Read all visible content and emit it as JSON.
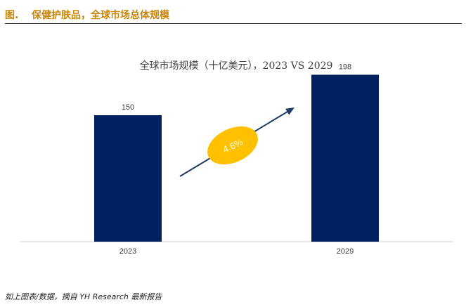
{
  "header": {
    "figure_label": "图.",
    "title": "保健护肤品，全球市场总体规模",
    "accent_color": "#c8860a"
  },
  "chart_data": {
    "type": "bar",
    "title": "全球市场规模（十亿美元），2023 VS 2029",
    "xlabel": "",
    "ylabel": "",
    "categories": [
      "2023",
      "2029"
    ],
    "values": [
      150,
      198
    ],
    "ylim": [
      0,
      225
    ],
    "grid": false,
    "legend": "none",
    "bar_color": "#002060",
    "annotation": {
      "text": "4.6%",
      "type": "growth-arrow",
      "ellipse_color": "#ffc000",
      "arrow_color": "#1f3864"
    }
  },
  "footer": {
    "source": "如上图表/数据，摘自 YH Research 最新报告"
  }
}
